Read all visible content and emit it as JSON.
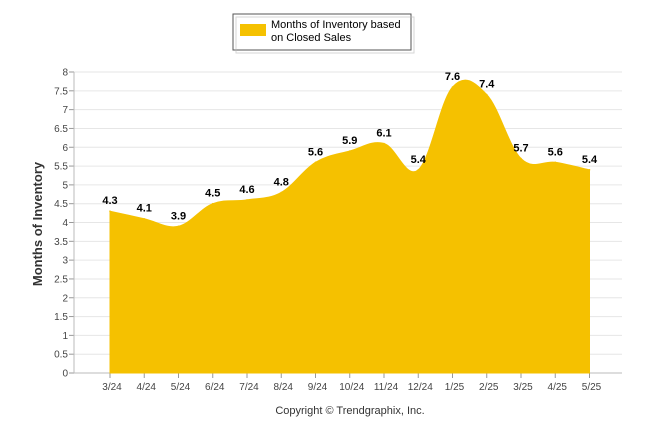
{
  "chart_data": {
    "type": "area",
    "categories": [
      "3/24",
      "4/24",
      "5/24",
      "6/24",
      "7/24",
      "8/24",
      "9/24",
      "10/24",
      "11/24",
      "12/24",
      "1/25",
      "2/25",
      "3/25",
      "4/25",
      "5/25"
    ],
    "series": [
      {
        "name": "Months of Inventory based on Closed Sales",
        "values": [
          4.3,
          4.1,
          3.9,
          4.5,
          4.6,
          4.8,
          5.6,
          5.9,
          6.1,
          5.4,
          7.6,
          7.4,
          5.7,
          5.6,
          5.4
        ],
        "color": "#F5C100"
      }
    ],
    "title": "",
    "xlabel": "",
    "ylabel": "Months of Inventory",
    "ylim": [
      0,
      8
    ],
    "yticks": [
      0,
      0.5,
      1,
      1.5,
      2,
      2.5,
      3,
      3.5,
      4,
      4.5,
      5,
      5.5,
      6,
      6.5,
      7,
      7.5,
      8
    ],
    "grid": true,
    "legend_position": "top-center",
    "data_labels": [
      "4.3",
      "4.1",
      "3.9",
      "4.5",
      "4.6",
      "4.8",
      "5.6",
      "5.9",
      "6.1",
      "5.4",
      "7.6",
      "7.4",
      "5.7",
      "5.6",
      "5.4"
    ]
  },
  "legend": {
    "line1": "Months of Inventory based",
    "line2": "on Closed Sales"
  },
  "footer": {
    "credit": "Copyright © Trendgraphix, Inc."
  },
  "colors": {
    "series": "#F5C100",
    "grid": "#e6e6e6",
    "axis_text": "#444444"
  }
}
